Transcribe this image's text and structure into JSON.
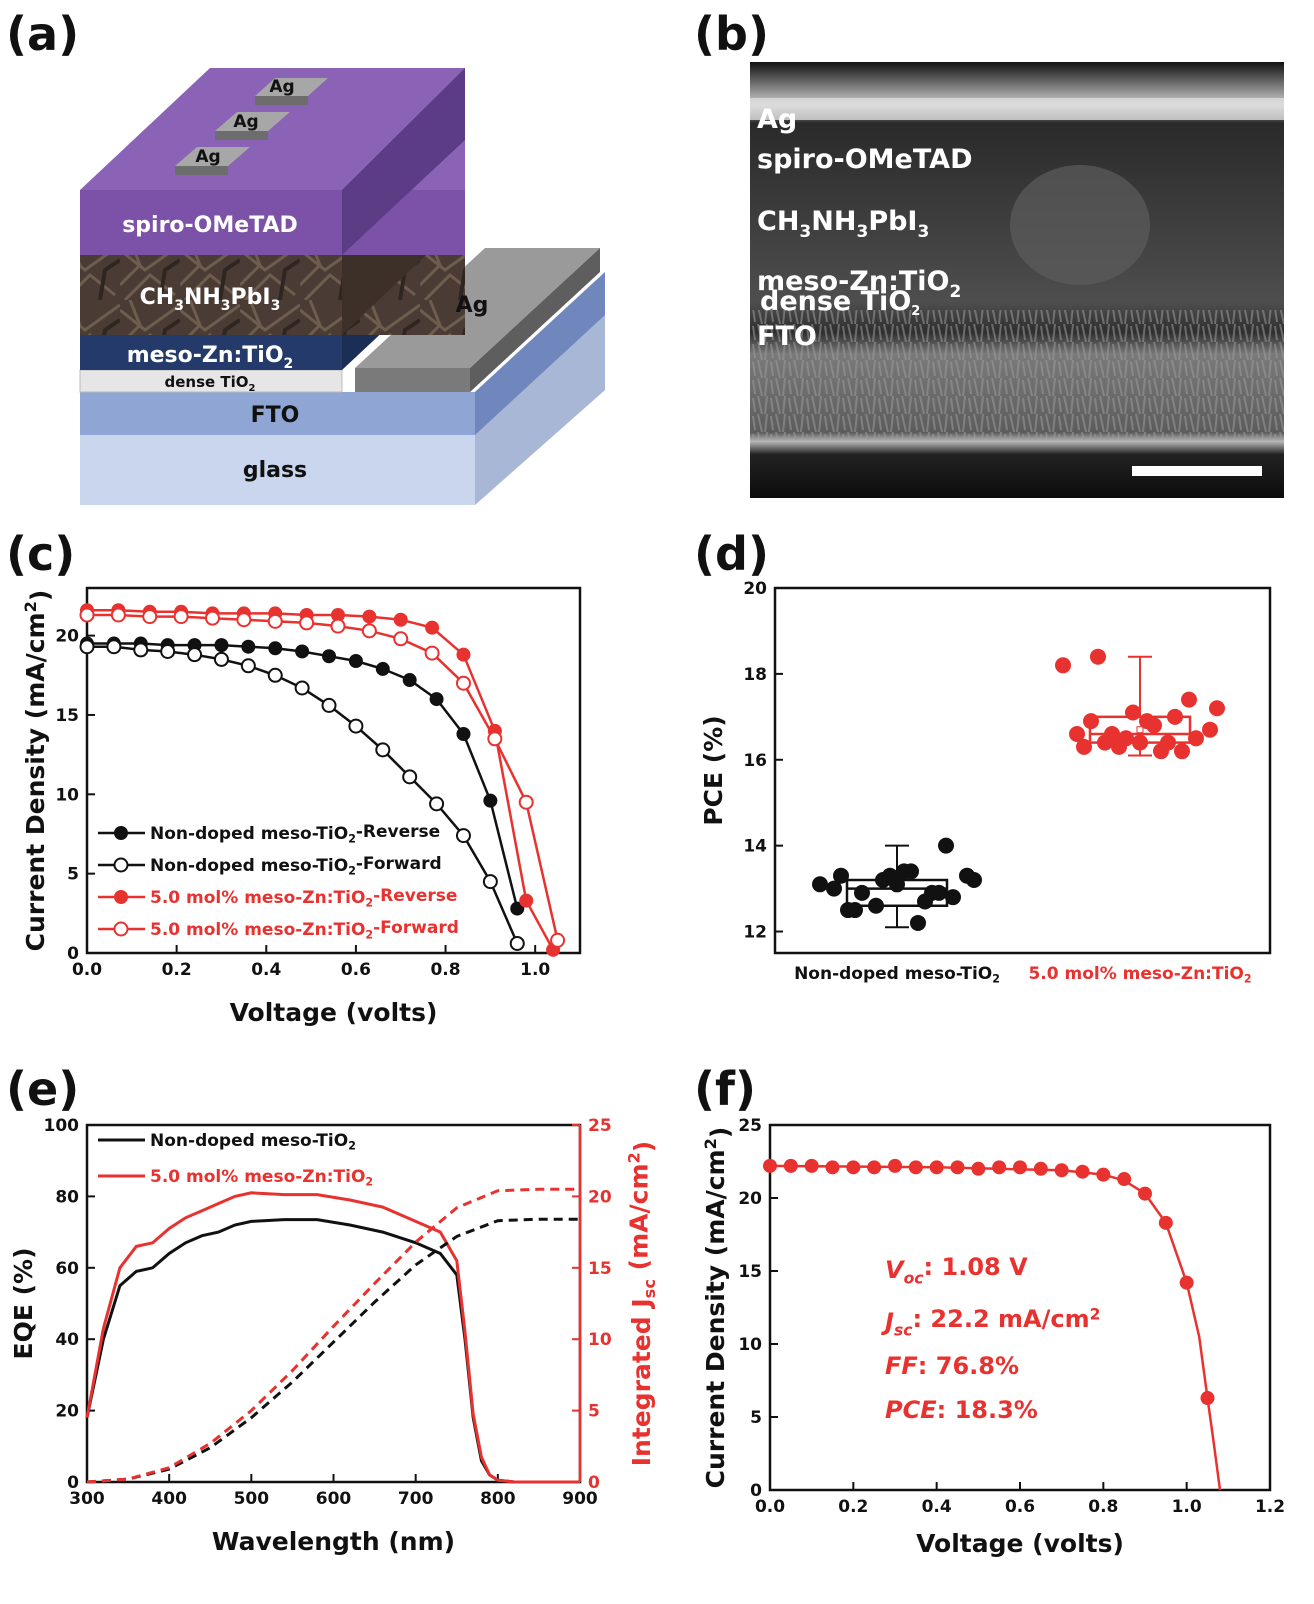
{
  "colors": {
    "black": "#111111",
    "red": "#e8322f",
    "purple": "#7b52a8",
    "navy": "#233a6b",
    "fto": "#8fa6d4",
    "glass": "#c9d6ee"
  },
  "panels": {
    "a": {
      "label": "(a)",
      "layers": {
        "ag_contacts": [
          "Ag",
          "Ag",
          "Ag"
        ],
        "spiro": "spiro-OMeTAD",
        "perovskite": {
          "base": "CH",
          "s1": "3",
          "mid": "NH",
          "s2": "3",
          "end": "PbI",
          "s3": "3"
        },
        "meso": {
          "base": "meso-Zn:TiO",
          "sub": "2"
        },
        "dense": {
          "base": "dense TiO",
          "sub": "2"
        },
        "fto": "FTO",
        "glass": "glass",
        "ag_electrode": "Ag"
      }
    },
    "b": {
      "label": "(b)",
      "labels": {
        "ag": "Ag",
        "spiro": "spiro-OMeTAD",
        "perovskite": {
          "base": "CH",
          "s1": "3",
          "mid": "NH",
          "s2": "3",
          "end": "PbI",
          "s3": "3"
        },
        "meso": {
          "base": "meso-Zn:TiO",
          "sub": "2"
        },
        "dense": {
          "base": "dense TiO",
          "sub": "2"
        },
        "fto": "FTO"
      }
    },
    "c": {
      "label": "(c)"
    },
    "d": {
      "label": "(d)"
    },
    "e": {
      "label": "(e)"
    },
    "f": {
      "label": "(f)"
    }
  },
  "chart_data": [
    {
      "id": "c",
      "type": "line",
      "xlabel": "Voltage (volts)",
      "ylabel": {
        "base": "Current Density (mA/cm",
        "sup": "2",
        "end": ")"
      },
      "xlim": [
        0,
        1.1
      ],
      "ylim": [
        0,
        23
      ],
      "xticks": [
        "0.0",
        "0.2",
        "0.4",
        "0.6",
        "0.8",
        "1.0"
      ],
      "yticks": [
        "0",
        "5",
        "10",
        "15",
        "20"
      ],
      "legend_position": "bottom-left",
      "series": [
        {
          "name": {
            "base": "Non-doped meso-TiO",
            "sub": "2",
            "end": "-Reverse"
          },
          "color": "#111111",
          "marker": "filled-circle",
          "x": [
            0,
            0.06,
            0.12,
            0.18,
            0.24,
            0.3,
            0.36,
            0.42,
            0.48,
            0.54,
            0.6,
            0.66,
            0.72,
            0.78,
            0.84,
            0.9,
            0.96
          ],
          "y": [
            19.5,
            19.5,
            19.5,
            19.4,
            19.4,
            19.4,
            19.3,
            19.2,
            19.0,
            18.7,
            18.4,
            17.9,
            17.2,
            16.0,
            13.8,
            9.6,
            2.8
          ]
        },
        {
          "name": {
            "base": "Non-doped meso-TiO",
            "sub": "2",
            "end": "-Forward"
          },
          "color": "#111111",
          "marker": "open-circle",
          "x": [
            0,
            0.06,
            0.12,
            0.18,
            0.24,
            0.3,
            0.36,
            0.42,
            0.48,
            0.54,
            0.6,
            0.66,
            0.72,
            0.78,
            0.84,
            0.9,
            0.96
          ],
          "y": [
            19.3,
            19.3,
            19.1,
            19.0,
            18.8,
            18.5,
            18.1,
            17.5,
            16.7,
            15.6,
            14.3,
            12.8,
            11.1,
            9.4,
            7.4,
            4.5,
            0.6
          ]
        },
        {
          "name": {
            "base": "5.0 mol% meso-Zn:TiO",
            "sub": "2",
            "end": "-Reverse"
          },
          "color": "#e8322f",
          "marker": "filled-circle",
          "x": [
            0,
            0.07,
            0.14,
            0.21,
            0.28,
            0.35,
            0.42,
            0.49,
            0.56,
            0.63,
            0.7,
            0.77,
            0.84,
            0.91,
            0.98,
            1.04
          ],
          "y": [
            21.6,
            21.6,
            21.5,
            21.5,
            21.4,
            21.4,
            21.4,
            21.3,
            21.3,
            21.2,
            21.0,
            20.5,
            18.8,
            14.0,
            3.3,
            0.2
          ]
        },
        {
          "name": {
            "base": "5.0 mol% meso-Zn:TiO",
            "sub": "2",
            "end": "-Forward"
          },
          "color": "#e8322f",
          "marker": "open-circle",
          "x": [
            0,
            0.07,
            0.14,
            0.21,
            0.28,
            0.35,
            0.42,
            0.49,
            0.56,
            0.63,
            0.7,
            0.77,
            0.84,
            0.91,
            0.98,
            1.05
          ],
          "y": [
            21.3,
            21.3,
            21.2,
            21.2,
            21.1,
            21.0,
            20.9,
            20.8,
            20.6,
            20.3,
            19.8,
            18.9,
            17.0,
            13.5,
            9.5,
            0.8
          ]
        }
      ]
    },
    {
      "id": "d",
      "type": "scatter",
      "ylabel": "PCE (%)",
      "ylim": [
        11.5,
        20
      ],
      "yticks": [
        "12",
        "14",
        "16",
        "18",
        "20"
      ],
      "categories": [
        {
          "base": "Non-doped meso-TiO",
          "sub": "2",
          "color": "#111111"
        },
        {
          "base": "5.0 mol% meso-Zn:TiO",
          "sub": "2",
          "color": "#e8322f"
        }
      ],
      "groups": [
        {
          "color": "#111111",
          "values": [
            13.3,
            12.9,
            13.2,
            13.4,
            12.7,
            14.0,
            13.1,
            12.5,
            13.3,
            12.2,
            12.8,
            13.2,
            13.0,
            12.6,
            13.4,
            12.9,
            13.3,
            12.5,
            13.1,
            12.9
          ],
          "box": {
            "q1": 12.6,
            "median": 13.0,
            "q3": 13.2,
            "min": 12.1,
            "max": 14.0,
            "mean": 13.0
          }
        },
        {
          "color": "#e8322f",
          "values": [
            16.3,
            16.4,
            16.5,
            16.9,
            16.4,
            17.4,
            18.2,
            18.4,
            17.1,
            16.2,
            16.5,
            17.2,
            16.6,
            16.3,
            16.8,
            16.2,
            16.7,
            16.9,
            16.4,
            17.0,
            16.6
          ],
          "box": {
            "q1": 16.4,
            "median": 16.6,
            "q3": 17.0,
            "min": 16.1,
            "max": 18.4,
            "mean": 16.7
          }
        }
      ]
    },
    {
      "id": "e",
      "type": "line",
      "xlabel": "Wavelength (nm)",
      "ylabel": "EQE (%)",
      "ylabel_right": {
        "base": "Integrated J",
        "sub": "sc",
        "mid": " (mA/cm",
        "sup": "2",
        "end": ")"
      },
      "xlim": [
        300,
        900
      ],
      "ylim": [
        0,
        100
      ],
      "ylim_right": [
        0,
        25
      ],
      "xticks": [
        "300",
        "400",
        "500",
        "600",
        "700",
        "800",
        "900"
      ],
      "yticks": [
        "0",
        "20",
        "40",
        "60",
        "80",
        "100"
      ],
      "yticks_right": [
        "0",
        "5",
        "10",
        "15",
        "20",
        "25"
      ],
      "legend_position": "top-left",
      "series": [
        {
          "name": {
            "base": "Non-doped meso-TiO",
            "sub": "2"
          },
          "color": "#111111",
          "style": "solid",
          "axis": "left",
          "x": [
            300,
            320,
            340,
            360,
            380,
            400,
            420,
            440,
            460,
            480,
            500,
            540,
            580,
            620,
            660,
            700,
            730,
            750,
            760,
            770,
            780,
            790,
            800,
            820,
            900
          ],
          "y": [
            18,
            40,
            55,
            59,
            60,
            64,
            67,
            69,
            70,
            72,
            73,
            73.5,
            73.5,
            72,
            70,
            67,
            64,
            58,
            40,
            18,
            6,
            2,
            0.5,
            0,
            0
          ]
        },
        {
          "name": {
            "base": "5.0 mol% meso-Zn:TiO",
            "sub": "2"
          },
          "color": "#e8322f",
          "style": "solid",
          "axis": "left",
          "x": [
            300,
            320,
            340,
            360,
            380,
            400,
            420,
            440,
            460,
            480,
            500,
            540,
            580,
            620,
            660,
            700,
            730,
            750,
            760,
            770,
            780,
            790,
            800,
            820,
            900
          ],
          "y": [
            18,
            43,
            60,
            66,
            67,
            71,
            74,
            76,
            78,
            80,
            81,
            80.5,
            80.5,
            79,
            77,
            73,
            70,
            62,
            42,
            19,
            7,
            2,
            0.5,
            0,
            0
          ]
        },
        {
          "name": "",
          "color": "#111111",
          "style": "dashed",
          "axis": "right",
          "x": [
            300,
            350,
            400,
            450,
            500,
            550,
            600,
            650,
            700,
            750,
            800,
            850,
            900
          ],
          "y": [
            0,
            0.2,
            0.9,
            2.4,
            4.5,
            7.0,
            9.8,
            12.6,
            15.2,
            17.2,
            18.3,
            18.4,
            18.4
          ]
        },
        {
          "name": "",
          "color": "#e8322f",
          "style": "dashed",
          "axis": "right",
          "x": [
            300,
            350,
            400,
            450,
            500,
            550,
            600,
            650,
            700,
            750,
            800,
            850,
            900
          ],
          "y": [
            0,
            0.2,
            1.0,
            2.7,
            5.0,
            7.8,
            10.9,
            13.9,
            16.8,
            19.2,
            20.4,
            20.5,
            20.5
          ]
        }
      ]
    },
    {
      "id": "f",
      "type": "line",
      "xlabel": "Voltage (volts)",
      "ylabel": {
        "base": "Current Density (mA/cm",
        "sup": "2",
        "end": ")"
      },
      "xlim": [
        0,
        1.2
      ],
      "ylim": [
        0,
        25
      ],
      "xticks": [
        "0.0",
        "0.2",
        "0.4",
        "0.6",
        "0.8",
        "1.0",
        "1.2"
      ],
      "yticks": [
        "0",
        "5",
        "10",
        "15",
        "20",
        "25"
      ],
      "series": [
        {
          "name": "",
          "color": "#e8322f",
          "marker": "filled-circle",
          "x": [
            0,
            0.05,
            0.1,
            0.15,
            0.2,
            0.25,
            0.3,
            0.35,
            0.4,
            0.45,
            0.5,
            0.55,
            0.6,
            0.65,
            0.7,
            0.75,
            0.8,
            0.85,
            0.9,
            0.95,
            1.0,
            1.05
          ],
          "y": [
            22.2,
            22.2,
            22.2,
            22.1,
            22.1,
            22.1,
            22.2,
            22.1,
            22.1,
            22.1,
            22.0,
            22.1,
            22.1,
            22.0,
            21.9,
            21.8,
            21.6,
            21.3,
            20.3,
            18.3,
            14.2,
            6.3
          ],
          "curve_x": [
            0,
            0.4,
            0.7,
            0.8,
            0.85,
            0.9,
            0.95,
            1.0,
            1.03,
            1.05,
            1.065,
            1.08
          ],
          "curve_y": [
            22.2,
            22.1,
            21.9,
            21.6,
            21.2,
            20.3,
            18.3,
            14.2,
            10.5,
            6.3,
            3.2,
            0
          ]
        }
      ],
      "annotations": [
        {
          "sym": "V",
          "sub": "oc",
          "text": ": 1.08 V"
        },
        {
          "sym": "J",
          "sub": "sc",
          "text": ": 22.2 mA/cm",
          "sup": "2"
        },
        {
          "sym": "FF",
          "text": ": 76.8%"
        },
        {
          "sym": "PCE",
          "text": ": 18.3%"
        }
      ]
    }
  ]
}
